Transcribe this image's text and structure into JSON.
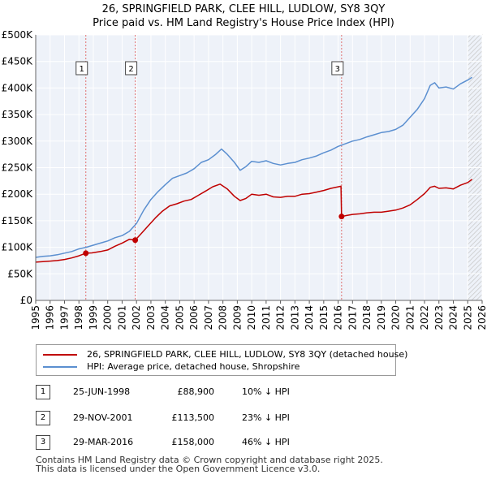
{
  "title_line1": "26, SPRINGFIELD PARK, CLEE HILL, LUDLOW, SY8 3QY",
  "title_line2": "Price paid vs. HM Land Registry's House Price Index (HPI)",
  "chart_data": {
    "type": "line",
    "x_range": [
      1995,
      2026
    ],
    "ylim": [
      0,
      500000
    ],
    "y_ticks": [
      {
        "value": 0,
        "label": "£0"
      },
      {
        "value": 50000,
        "label": "£50K"
      },
      {
        "value": 100000,
        "label": "£100K"
      },
      {
        "value": 150000,
        "label": "£150K"
      },
      {
        "value": 200000,
        "label": "£200K"
      },
      {
        "value": 250000,
        "label": "£250K"
      },
      {
        "value": 300000,
        "label": "£300K"
      },
      {
        "value": 350000,
        "label": "£350K"
      },
      {
        "value": 400000,
        "label": "£400K"
      },
      {
        "value": 450000,
        "label": "£450K"
      },
      {
        "value": 500000,
        "label": "£500K"
      }
    ],
    "x_ticks": [
      "1995",
      "1996",
      "1997",
      "1998",
      "1999",
      "2000",
      "2001",
      "2002",
      "2003",
      "2004",
      "2005",
      "2006",
      "2007",
      "2008",
      "2009",
      "2010",
      "2011",
      "2012",
      "2013",
      "2014",
      "2015",
      "2016",
      "2017",
      "2018",
      "2019",
      "2020",
      "2021",
      "2022",
      "2023",
      "2024",
      "2025",
      "2026"
    ],
    "grid": true,
    "projection_start": 2025.0,
    "series": [
      {
        "name": "HPI: Average price, detached house, Shropshire",
        "color": "#5b8fd0",
        "x": [
          1995.0,
          1995.5,
          1996.0,
          1996.5,
          1997.0,
          1997.5,
          1998.0,
          1998.5,
          1999.0,
          1999.5,
          2000.0,
          2000.5,
          2001.0,
          2001.5,
          2002.0,
          2002.5,
          2003.0,
          2003.5,
          2004.0,
          2004.5,
          2005.0,
          2005.5,
          2006.0,
          2006.5,
          2007.0,
          2007.5,
          2007.9,
          2008.3,
          2008.8,
          2009.2,
          2009.6,
          2010.0,
          2010.5,
          2011.0,
          2011.5,
          2012.0,
          2012.5,
          2013.0,
          2013.5,
          2014.0,
          2014.5,
          2015.0,
          2015.5,
          2016.0,
          2016.5,
          2017.0,
          2017.5,
          2018.0,
          2018.5,
          2019.0,
          2019.5,
          2020.0,
          2020.5,
          2021.0,
          2021.5,
          2022.0,
          2022.4,
          2022.7,
          2023.0,
          2023.5,
          2024.0,
          2024.5,
          2025.0,
          2025.3
        ],
        "values": [
          81000,
          83000,
          84000,
          86000,
          89000,
          92000,
          97000,
          100000,
          104000,
          108000,
          112000,
          118000,
          122000,
          130000,
          145000,
          170000,
          190000,
          205000,
          218000,
          230000,
          235000,
          240000,
          248000,
          260000,
          265000,
          275000,
          285000,
          275000,
          260000,
          245000,
          252000,
          262000,
          260000,
          263000,
          258000,
          255000,
          258000,
          260000,
          265000,
          268000,
          272000,
          278000,
          283000,
          290000,
          295000,
          300000,
          303000,
          308000,
          312000,
          316000,
          318000,
          322000,
          330000,
          345000,
          360000,
          380000,
          405000,
          410000,
          400000,
          402000,
          398000,
          408000,
          415000,
          420000
        ]
      },
      {
        "name": "26, SPRINGFIELD PARK, CLEE HILL, LUDLOW, SY8 3QY (detached house)",
        "color": "#c00000",
        "x": [
          1995.0,
          1995.5,
          1996.0,
          1996.5,
          1997.0,
          1997.5,
          1998.0,
          1998.48,
          1998.9,
          1999.5,
          2000.0,
          2000.5,
          2001.0,
          2001.5,
          2001.91,
          2002.3,
          2002.8,
          2003.3,
          2003.8,
          2004.3,
          2004.8,
          2005.3,
          2005.8,
          2006.3,
          2006.8,
          2007.3,
          2007.8,
          2008.3,
          2008.8,
          2009.2,
          2009.6,
          2010.0,
          2010.5,
          2011.0,
          2011.5,
          2012.0,
          2012.5,
          2013.0,
          2013.5,
          2014.0,
          2014.5,
          2015.0,
          2015.5,
          2016.2,
          2016.24,
          2016.6,
          2017.0,
          2017.5,
          2018.0,
          2018.5,
          2019.0,
          2019.5,
          2020.0,
          2020.5,
          2021.0,
          2021.5,
          2022.0,
          2022.4,
          2022.7,
          2023.0,
          2023.5,
          2024.0,
          2024.5,
          2025.0,
          2025.3
        ],
        "values": [
          72000,
          73000,
          74000,
          75000,
          77000,
          80000,
          84000,
          88900,
          89500,
          92000,
          95000,
          102000,
          108000,
          115000,
          113500,
          125000,
          140000,
          155000,
          168000,
          178000,
          182000,
          187000,
          190000,
          198000,
          206000,
          214000,
          219000,
          210000,
          196000,
          188000,
          192000,
          200000,
          198000,
          200000,
          195000,
          194000,
          196000,
          196000,
          200000,
          201000,
          204000,
          207000,
          211000,
          215000,
          158000,
          160000,
          162000,
          163000,
          165000,
          166000,
          166000,
          168000,
          170000,
          174000,
          180000,
          190000,
          201000,
          213000,
          215000,
          211000,
          212000,
          210000,
          217000,
          222000,
          228000
        ]
      }
    ],
    "sales": [
      {
        "id": "1",
        "x": 1998.48,
        "value": 88900
      },
      {
        "id": "2",
        "x": 2001.91,
        "value": 113500
      },
      {
        "id": "3",
        "x": 2016.24,
        "value": 158000
      }
    ]
  },
  "legend": {
    "property_label": "26, SPRINGFIELD PARK, CLEE HILL, LUDLOW, SY8 3QY (detached house)",
    "hpi_label": "HPI: Average price, detached house, Shropshire"
  },
  "transactions": [
    {
      "id": "1",
      "date": "25-JUN-1998",
      "price": "£88,900",
      "hpi": "10% ↓ HPI"
    },
    {
      "id": "2",
      "date": "29-NOV-2001",
      "price": "£113,500",
      "hpi": "23% ↓ HPI"
    },
    {
      "id": "3",
      "date": "29-MAR-2016",
      "price": "£158,000",
      "hpi": "46% ↓ HPI"
    }
  ],
  "footer": {
    "line1": "Contains HM Land Registry data © Crown copyright and database right 2025.",
    "line2": "This data is licensed under the Open Government Licence v3.0."
  },
  "colors": {
    "property": "#c00000",
    "hpi": "#5b8fd0",
    "plot_bg": "#eef2f9",
    "grid": "#ffffff",
    "marker_line": "#e07070"
  }
}
